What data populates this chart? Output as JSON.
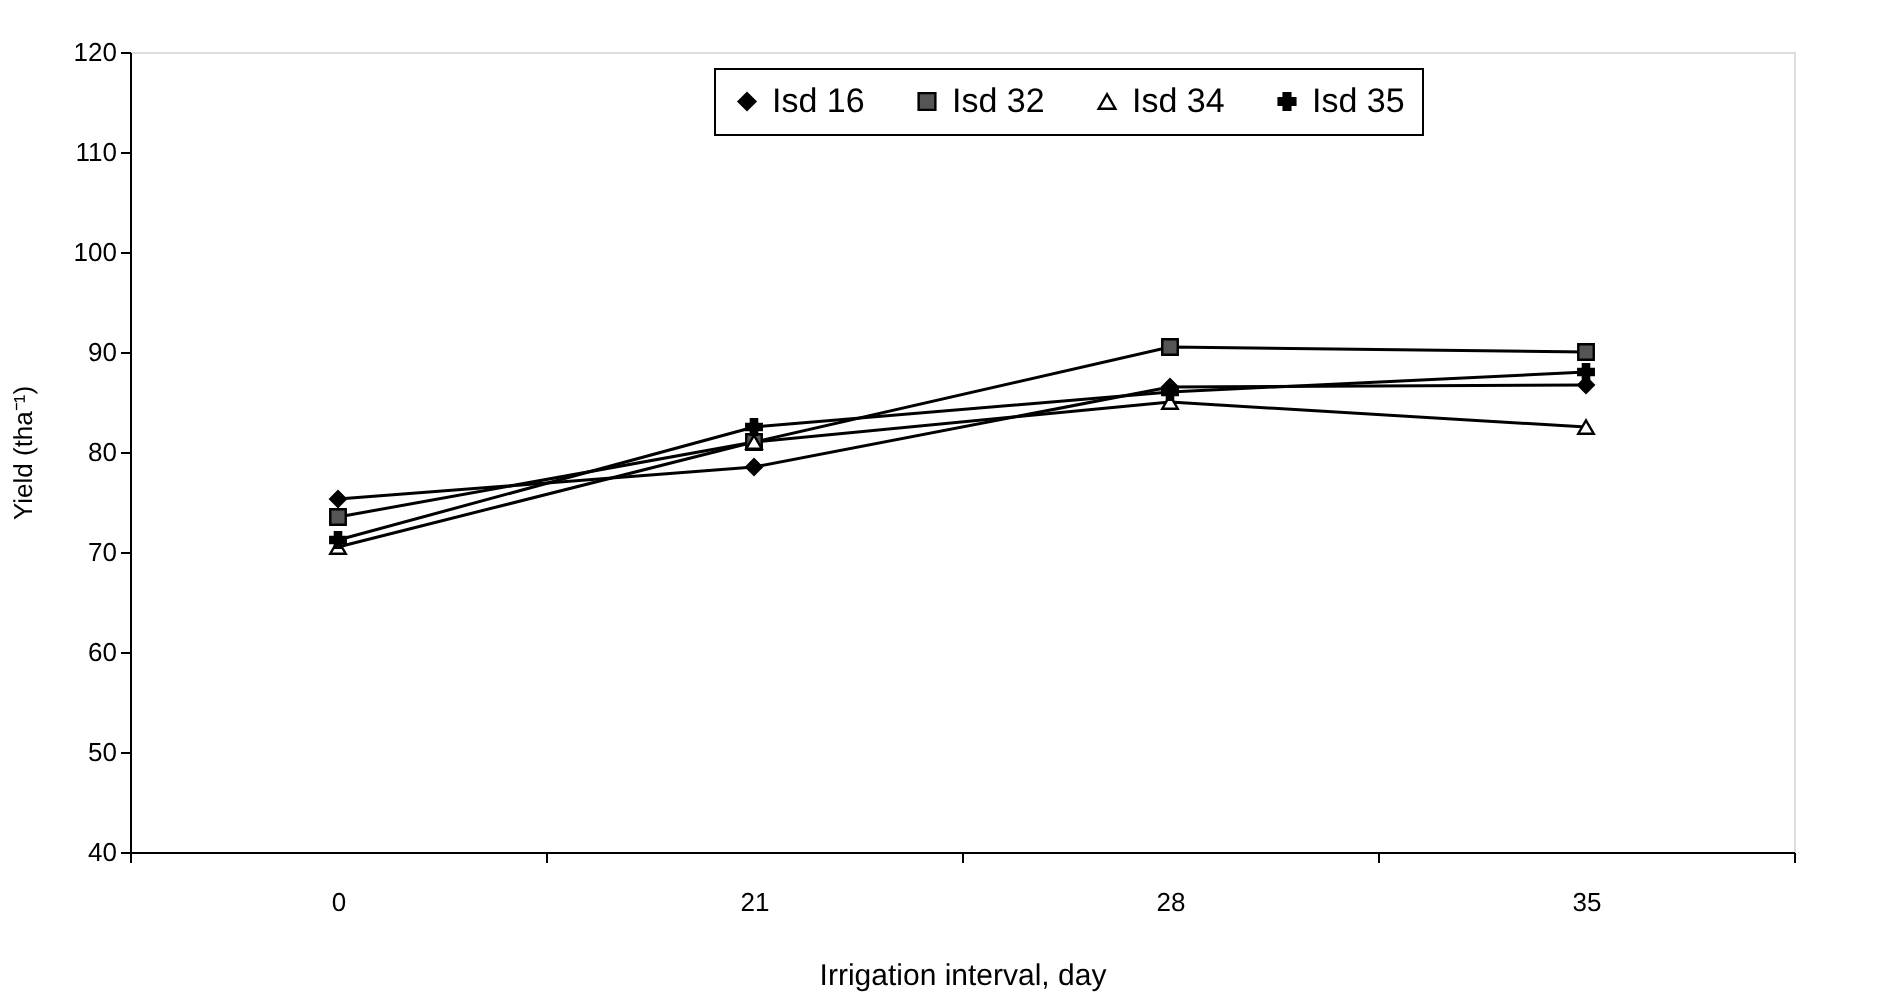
{
  "chart_data": {
    "type": "line",
    "xlabel": "Irrigation interval, day",
    "ylabel": "Yield (tha⁻¹)",
    "categories": [
      "0",
      "21",
      "28",
      "35"
    ],
    "series": [
      {
        "name": "Isd 16",
        "color": "#000000",
        "marker": "diamond",
        "values": [
          75.3,
          78.5,
          86.5,
          86.7
        ]
      },
      {
        "name": "Isd 32",
        "color": "#555555",
        "marker": "square",
        "values": [
          73.5,
          81,
          90.5,
          90
        ]
      },
      {
        "name": "Isd 34",
        "color": "#000000",
        "marker": "triangle",
        "values": [
          70.5,
          81,
          85,
          82.5
        ]
      },
      {
        "name": "Isd 35",
        "color": "#000000",
        "marker": "cross",
        "values": [
          71.2,
          82.5,
          86,
          88
        ]
      }
    ],
    "ylim": [
      40,
      120
    ],
    "yticks": [
      40,
      50,
      60,
      70,
      80,
      90,
      100,
      110,
      120
    ],
    "grid": false,
    "legend": "top right",
    "line_style": "solid"
  }
}
